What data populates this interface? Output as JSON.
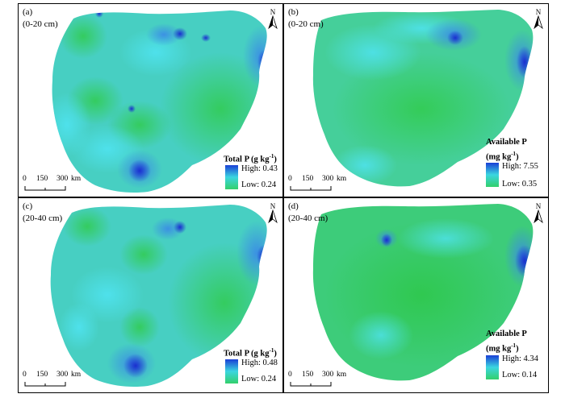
{
  "panels": {
    "a": {
      "id": "(a)",
      "depth": "(0-20 cm)",
      "legend": {
        "title_main": "Total P (g kg",
        "title_sup": "-1",
        "title_end": ")",
        "title_line2": "",
        "high": "High: 0.43",
        "low": "Low: 0.24"
      }
    },
    "b": {
      "id": "(b)",
      "depth": "(0-20 cm)",
      "legend": {
        "title_main": "Available P",
        "title_sup": "",
        "title_end": "",
        "title_line2": "(mg kg",
        "title_line2_sup": "-1",
        "title_line2_end": ")",
        "high": "High: 7.55",
        "low": "Low: 0.35"
      }
    },
    "c": {
      "id": "(c)",
      "depth": "(20-40 cm)",
      "legend": {
        "title_main": "Total P (g kg",
        "title_sup": "-1",
        "title_end": ")",
        "title_line2": "",
        "high": "High: 0.48",
        "low": "Low: 0.24"
      }
    },
    "d": {
      "id": "(d)",
      "depth": "(20-40 cm)",
      "legend": {
        "title_main": "Available P",
        "title_sup": "",
        "title_end": "",
        "title_line2": "(mg kg",
        "title_line2_sup": "-1",
        "title_line2_end": ")",
        "high": "High: 4.34",
        "low": "Low: 0.14"
      }
    }
  },
  "scale_bar": {
    "t0": "0",
    "t1": "150",
    "t2": "300",
    "unit": "km"
  },
  "north_label": "N",
  "colors": {
    "high": "#1a3fd6",
    "mid": "#3bd6e0",
    "low": "#33d06b"
  }
}
